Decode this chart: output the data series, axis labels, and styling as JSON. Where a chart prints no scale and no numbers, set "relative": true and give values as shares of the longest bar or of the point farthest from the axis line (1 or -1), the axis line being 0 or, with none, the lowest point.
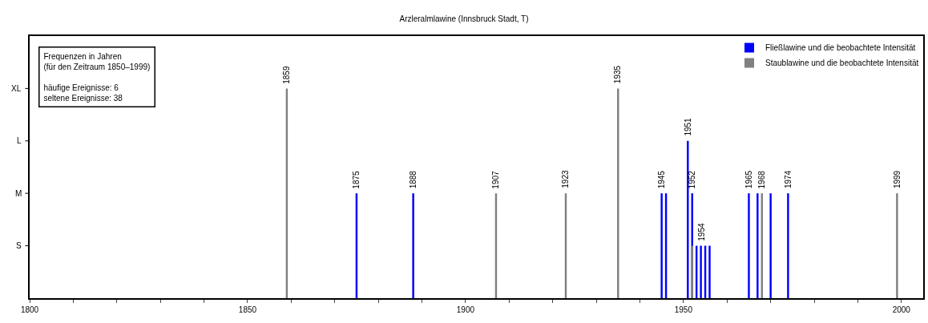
{
  "chart_data": {
    "type": "bar",
    "title": "Arzleralmlawine (Innsbruck Stadt, T)",
    "series": [
      {
        "name": "Fließlawine und die beobachtete Intensität",
        "color": "#0000ff",
        "x": [
          1875,
          1888,
          1945,
          1946,
          1951,
          1952,
          1953,
          1954,
          1955,
          1956,
          1965,
          1967,
          1970,
          1974
        ],
        "values": [
          0.5,
          0.5,
          0.5,
          0.5,
          0.75,
          0.5,
          0.25,
          0.25,
          0.25,
          0.25,
          0.5,
          0.5,
          0.5,
          0.5
        ]
      },
      {
        "name": "Staublawine und die beobachtete Intensität",
        "color": "#808080",
        "x": [
          1859,
          1907,
          1923,
          1935,
          1952,
          1968,
          1999
        ],
        "values": [
          1,
          0.5,
          0.5,
          1,
          0.25,
          0.5,
          0.5
        ]
      }
    ],
    "xlim": [
      1800,
      2005
    ],
    "xticks": [
      1800,
      {
        "value": 1810,
        "label": null
      },
      {
        "value": 1820,
        "label": null
      },
      {
        "value": 1830,
        "label": null
      },
      {
        "value": 1840,
        "label": null
      },
      1850,
      {
        "value": 1860,
        "label": null
      },
      {
        "value": 1870,
        "label": null
      },
      {
        "value": 1880,
        "label": null
      },
      {
        "value": 1890,
        "label": null
      },
      1900,
      {
        "value": 1910,
        "label": null
      },
      {
        "value": 1920,
        "label": null
      },
      {
        "value": 1930,
        "label": null
      },
      {
        "value": 1940,
        "label": null
      },
      1950,
      {
        "value": 1960,
        "label": null
      },
      {
        "value": 1970,
        "label": null
      },
      {
        "value": 1980,
        "label": null
      },
      {
        "value": 1990,
        "label": null
      },
      2000
    ],
    "relative": true,
    "annotations": [
      "Frequenzen in Jahren\n(für den Zeitraum 1850–1999)\n\nhäufige Ereignisse: 6\nseltene Ereignisse: 38",
      "S",
      "M",
      "L",
      "XL",
      {
        "text": "1859",
        "x": 1859,
        "y": 1
      },
      {
        "text": "1875",
        "x": 1875,
        "y": 0.5
      },
      {
        "text": "1888",
        "x": 1888,
        "y": 0.5
      },
      {
        "text": "1907",
        "x": 1907,
        "y": 0.5
      },
      {
        "text": "1923",
        "x": 1923,
        "y": 0.5
      },
      {
        "text": "1935",
        "x": 1935,
        "y": 1
      },
      {
        "text": "1945",
        "x": 1945,
        "y": 0.5
      },
      {
        "text": "1951",
        "x": 1951,
        "y": 0.75
      },
      {
        "text": "1952",
        "x": 1952,
        "y": 0.5
      },
      {
        "text": "1954",
        "x": 1954,
        "y": 0.25
      },
      {
        "text": "1965",
        "x": 1965,
        "y": 0.5
      },
      {
        "text": "1968",
        "x": 1968,
        "y": 0.5
      },
      {
        "text": "1974",
        "x": 1974,
        "y": 0.5
      },
      {
        "text": "1999",
        "x": 1999,
        "y": 0.5
      }
    ],
    "legend": "top right",
    "grid": false
  }
}
